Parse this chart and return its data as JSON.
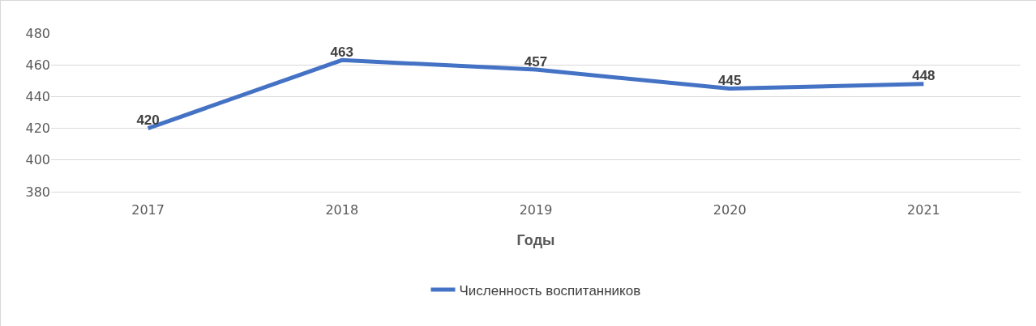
{
  "chart_data": {
    "type": "line",
    "xlabel": "Годы",
    "categories": [
      "2017",
      "2018",
      "2019",
      "2020",
      "2021"
    ],
    "series": [
      {
        "name": "Численность воспитанников",
        "color": "#4472c4",
        "values": [
          420,
          463,
          457,
          445,
          448
        ]
      }
    ],
    "ylim": [
      380,
      480
    ],
    "yticks": [
      380,
      400,
      420,
      440,
      460,
      480
    ],
    "grid": "y",
    "legend": "bottom",
    "data_labels": true,
    "marker": "none",
    "line_style": "solid"
  }
}
